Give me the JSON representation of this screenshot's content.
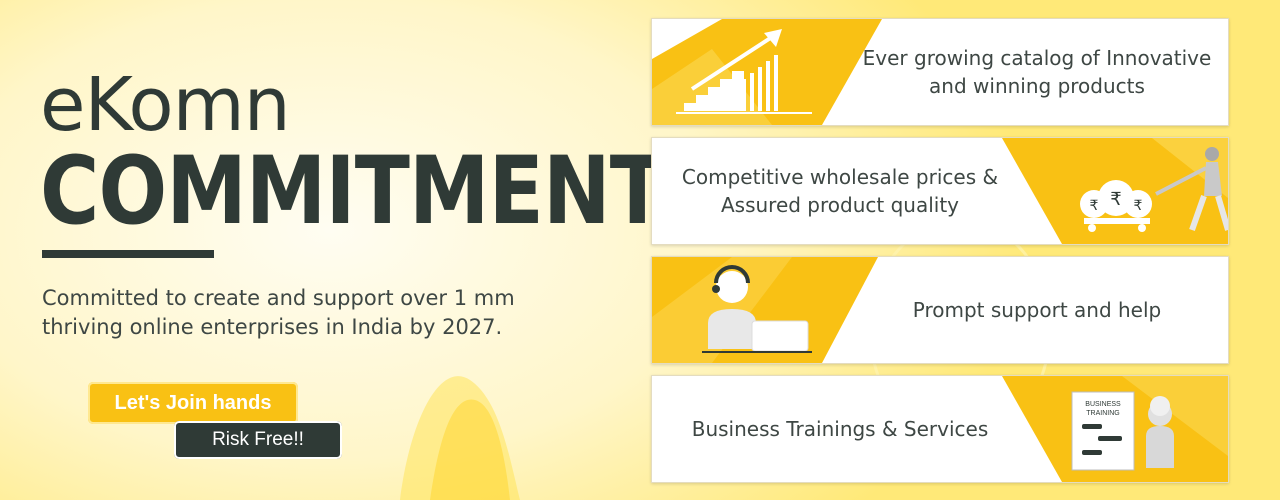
{
  "hero": {
    "brand": "eKomn",
    "headline": "COMMITMENT",
    "tagline_lines": [
      "Committed to create and support over 1 mm",
      "thriving online enterprises in India by 2027."
    ]
  },
  "cta": {
    "join_label": "Let's Join hands",
    "risk_label": "Risk Free!!"
  },
  "cards": [
    {
      "lines": [
        "Ever growing catalog of Innovative",
        "and winning products"
      ],
      "icon": "growth-stairs-arrow-icon"
    },
    {
      "lines": [
        "Competitive wholesale prices &",
        "Assured product quality"
      ],
      "icon": "money-bags-cart-icon",
      "bag_symbol": "₹"
    },
    {
      "lines": [
        "Prompt support and help"
      ],
      "icon": "support-agent-headset-icon"
    },
    {
      "lines": [
        "Business Trainings & Services"
      ],
      "icon": "business-training-board-icon",
      "board_lines": [
        "BUSINESS",
        "TRAINING"
      ]
    }
  ],
  "colors": {
    "accent": "#f9c114",
    "dark": "#2f3a36",
    "text": "#3e4744"
  }
}
